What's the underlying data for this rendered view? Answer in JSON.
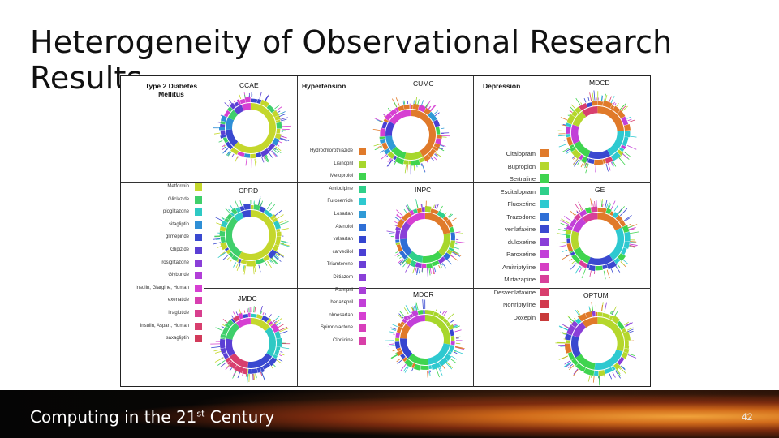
{
  "slide": {
    "title": "Heterogeneity of Observational Research Results",
    "footer_prefix": "Computing in the 21",
    "footer_sup": "st",
    "footer_suffix": " Century",
    "page_number": "42"
  },
  "sections": {
    "diabetes": {
      "title_line1": "Type 2 Diabetes",
      "title_line2": "Mellitus"
    },
    "hypertension": {
      "title": "Hypertension"
    },
    "depression": {
      "title": "Depression"
    }
  },
  "databases": {
    "ccae": "CCAE",
    "cprd": "CPRD",
    "jmdc": "JMDC",
    "cumc": "CUMC",
    "inpc": "INPC",
    "mdcr": "MDCR",
    "mdcd": "MDCD",
    "ge": "GE",
    "optum": "OPTUM"
  },
  "legends": {
    "diabetes": [
      {
        "label": "Metformin",
        "color": "#c4d72c"
      },
      {
        "label": "Gliclazide",
        "color": "#3fcf6b"
      },
      {
        "label": "pioglitazone",
        "color": "#2ec9c4"
      },
      {
        "label": "sitagliptin",
        "color": "#2f8fd6"
      },
      {
        "label": "glimepiride",
        "color": "#3a49d0"
      },
      {
        "label": "Glipizide",
        "color": "#5b3fd4"
      },
      {
        "label": "rosiglitazone",
        "color": "#8a3fd8"
      },
      {
        "label": "Glyburide",
        "color": "#b23fd8"
      },
      {
        "label": "Insulin, Glargine, Human",
        "color": "#d63fd2"
      },
      {
        "label": "exenatide",
        "color": "#d83fb0"
      },
      {
        "label": "liraglutide",
        "color": "#d83f8e"
      },
      {
        "label": "Insulin, Aspart, Human",
        "color": "#d83f6e"
      },
      {
        "label": "saxagliptin",
        "color": "#d23a5a"
      }
    ],
    "hypertension": [
      {
        "label": "Hydrochlorothiazide",
        "color": "#e07a2a"
      },
      {
        "label": "Lisinopril",
        "color": "#a7d72c"
      },
      {
        "label": "Metoprolol",
        "color": "#3fd44f"
      },
      {
        "label": "Amlodipine",
        "color": "#2fd08a"
      },
      {
        "label": "Furosemide",
        "color": "#2ec9d0"
      },
      {
        "label": "Losartan",
        "color": "#2f9ad6"
      },
      {
        "label": "Atenolol",
        "color": "#2f6fd6"
      },
      {
        "label": "valsartan",
        "color": "#3445d0"
      },
      {
        "label": "carvedilol",
        "color": "#4a3fd4"
      },
      {
        "label": "Triamterene",
        "color": "#6a3fd6"
      },
      {
        "label": "Diltiazem",
        "color": "#8a3fd8"
      },
      {
        "label": "Ramipril",
        "color": "#a83fd8"
      },
      {
        "label": "benazepril",
        "color": "#c23fd8"
      },
      {
        "label": "olmesartan",
        "color": "#d63fd2"
      },
      {
        "label": "Spironolactone",
        "color": "#d83fbc"
      },
      {
        "label": "Clonidine",
        "color": "#d83fa8"
      }
    ],
    "depression": [
      {
        "label": "Citalopram",
        "color": "#e07a2a"
      },
      {
        "label": "Bupropion",
        "color": "#b5d72c"
      },
      {
        "label": "Sertraline",
        "color": "#3fd44f"
      },
      {
        "label": "Escitalopram",
        "color": "#2fd08a"
      },
      {
        "label": "Fluoxetine",
        "color": "#2ec9d0"
      },
      {
        "label": "Trazodone",
        "color": "#2f6fd6"
      },
      {
        "label": "venlafaxine",
        "color": "#3a49d0"
      },
      {
        "label": "duloxetine",
        "color": "#8a3fd8"
      },
      {
        "label": "Paroxetine",
        "color": "#c23fd8"
      },
      {
        "label": "Amitriptyline",
        "color": "#d63fc4"
      },
      {
        "label": "Mirtazapine",
        "color": "#d83f9a"
      },
      {
        "label": "Desvenlafaxine",
        "color": "#d83f6e"
      },
      {
        "label": "Nortriptyline",
        "color": "#d23a4e"
      },
      {
        "label": "Doxepin",
        "color": "#c83a3a"
      }
    ]
  },
  "sunburst_mix": {
    "ccae": [
      [
        "#c4d72c",
        0.62
      ],
      [
        "#3a49d0",
        0.12
      ],
      [
        "#2f8fd6",
        0.08
      ],
      [
        "#3fcf6b",
        0.06
      ],
      [
        "#5b3fd4",
        0.06
      ],
      [
        "#d63fd2",
        0.06
      ]
    ],
    "cprd": [
      [
        "#c4d72c",
        0.58
      ],
      [
        "#3fcf6b",
        0.3
      ],
      [
        "#2ec9c4",
        0.06
      ],
      [
        "#3a49d0",
        0.06
      ]
    ],
    "jmdc": [
      [
        "#c4d72c",
        0.14
      ],
      [
        "#2ec9c4",
        0.2
      ],
      [
        "#3a49d0",
        0.18
      ],
      [
        "#d83f6e",
        0.14
      ],
      [
        "#5b3fd4",
        0.12
      ],
      [
        "#3fcf6b",
        0.12
      ],
      [
        "#d63fd2",
        0.1
      ]
    ],
    "cumc": [
      [
        "#e07a2a",
        0.42
      ],
      [
        "#a7d72c",
        0.12
      ],
      [
        "#3fd44f",
        0.1
      ],
      [
        "#2f9ad6",
        0.1
      ],
      [
        "#4a3fd4",
        0.1
      ],
      [
        "#d63fd2",
        0.16
      ]
    ],
    "inpc": [
      [
        "#e07a2a",
        0.22
      ],
      [
        "#a7d72c",
        0.16
      ],
      [
        "#3fd44f",
        0.14
      ],
      [
        "#2fd08a",
        0.1
      ],
      [
        "#2f6fd6",
        0.12
      ],
      [
        "#8a3fd8",
        0.12
      ],
      [
        "#d63fd2",
        0.14
      ]
    ],
    "mdcr": [
      [
        "#a7d72c",
        0.28
      ],
      [
        "#2ec9d0",
        0.2
      ],
      [
        "#3fd44f",
        0.14
      ],
      [
        "#3445d0",
        0.14
      ],
      [
        "#e07a2a",
        0.1
      ],
      [
        "#c23fd8",
        0.14
      ]
    ],
    "mdcd": [
      [
        "#e07a2a",
        0.24
      ],
      [
        "#2ec9d0",
        0.18
      ],
      [
        "#3a49d0",
        0.14
      ],
      [
        "#3fd44f",
        0.12
      ],
      [
        "#c23fd8",
        0.12
      ],
      [
        "#b5d72c",
        0.1
      ],
      [
        "#d83f6e",
        0.1
      ]
    ],
    "ge": [
      [
        "#e07a2a",
        0.18
      ],
      [
        "#2ec9d0",
        0.22
      ],
      [
        "#3a49d0",
        0.16
      ],
      [
        "#3fd44f",
        0.12
      ],
      [
        "#b5d72c",
        0.12
      ],
      [
        "#c23fd8",
        0.1
      ],
      [
        "#d83f9a",
        0.1
      ]
    ],
    "optum": [
      [
        "#b5d72c",
        0.3
      ],
      [
        "#2ec9d0",
        0.22
      ],
      [
        "#3fd44f",
        0.14
      ],
      [
        "#3a49d0",
        0.14
      ],
      [
        "#8a3fd8",
        0.1
      ],
      [
        "#e07a2a",
        0.1
      ]
    ]
  }
}
